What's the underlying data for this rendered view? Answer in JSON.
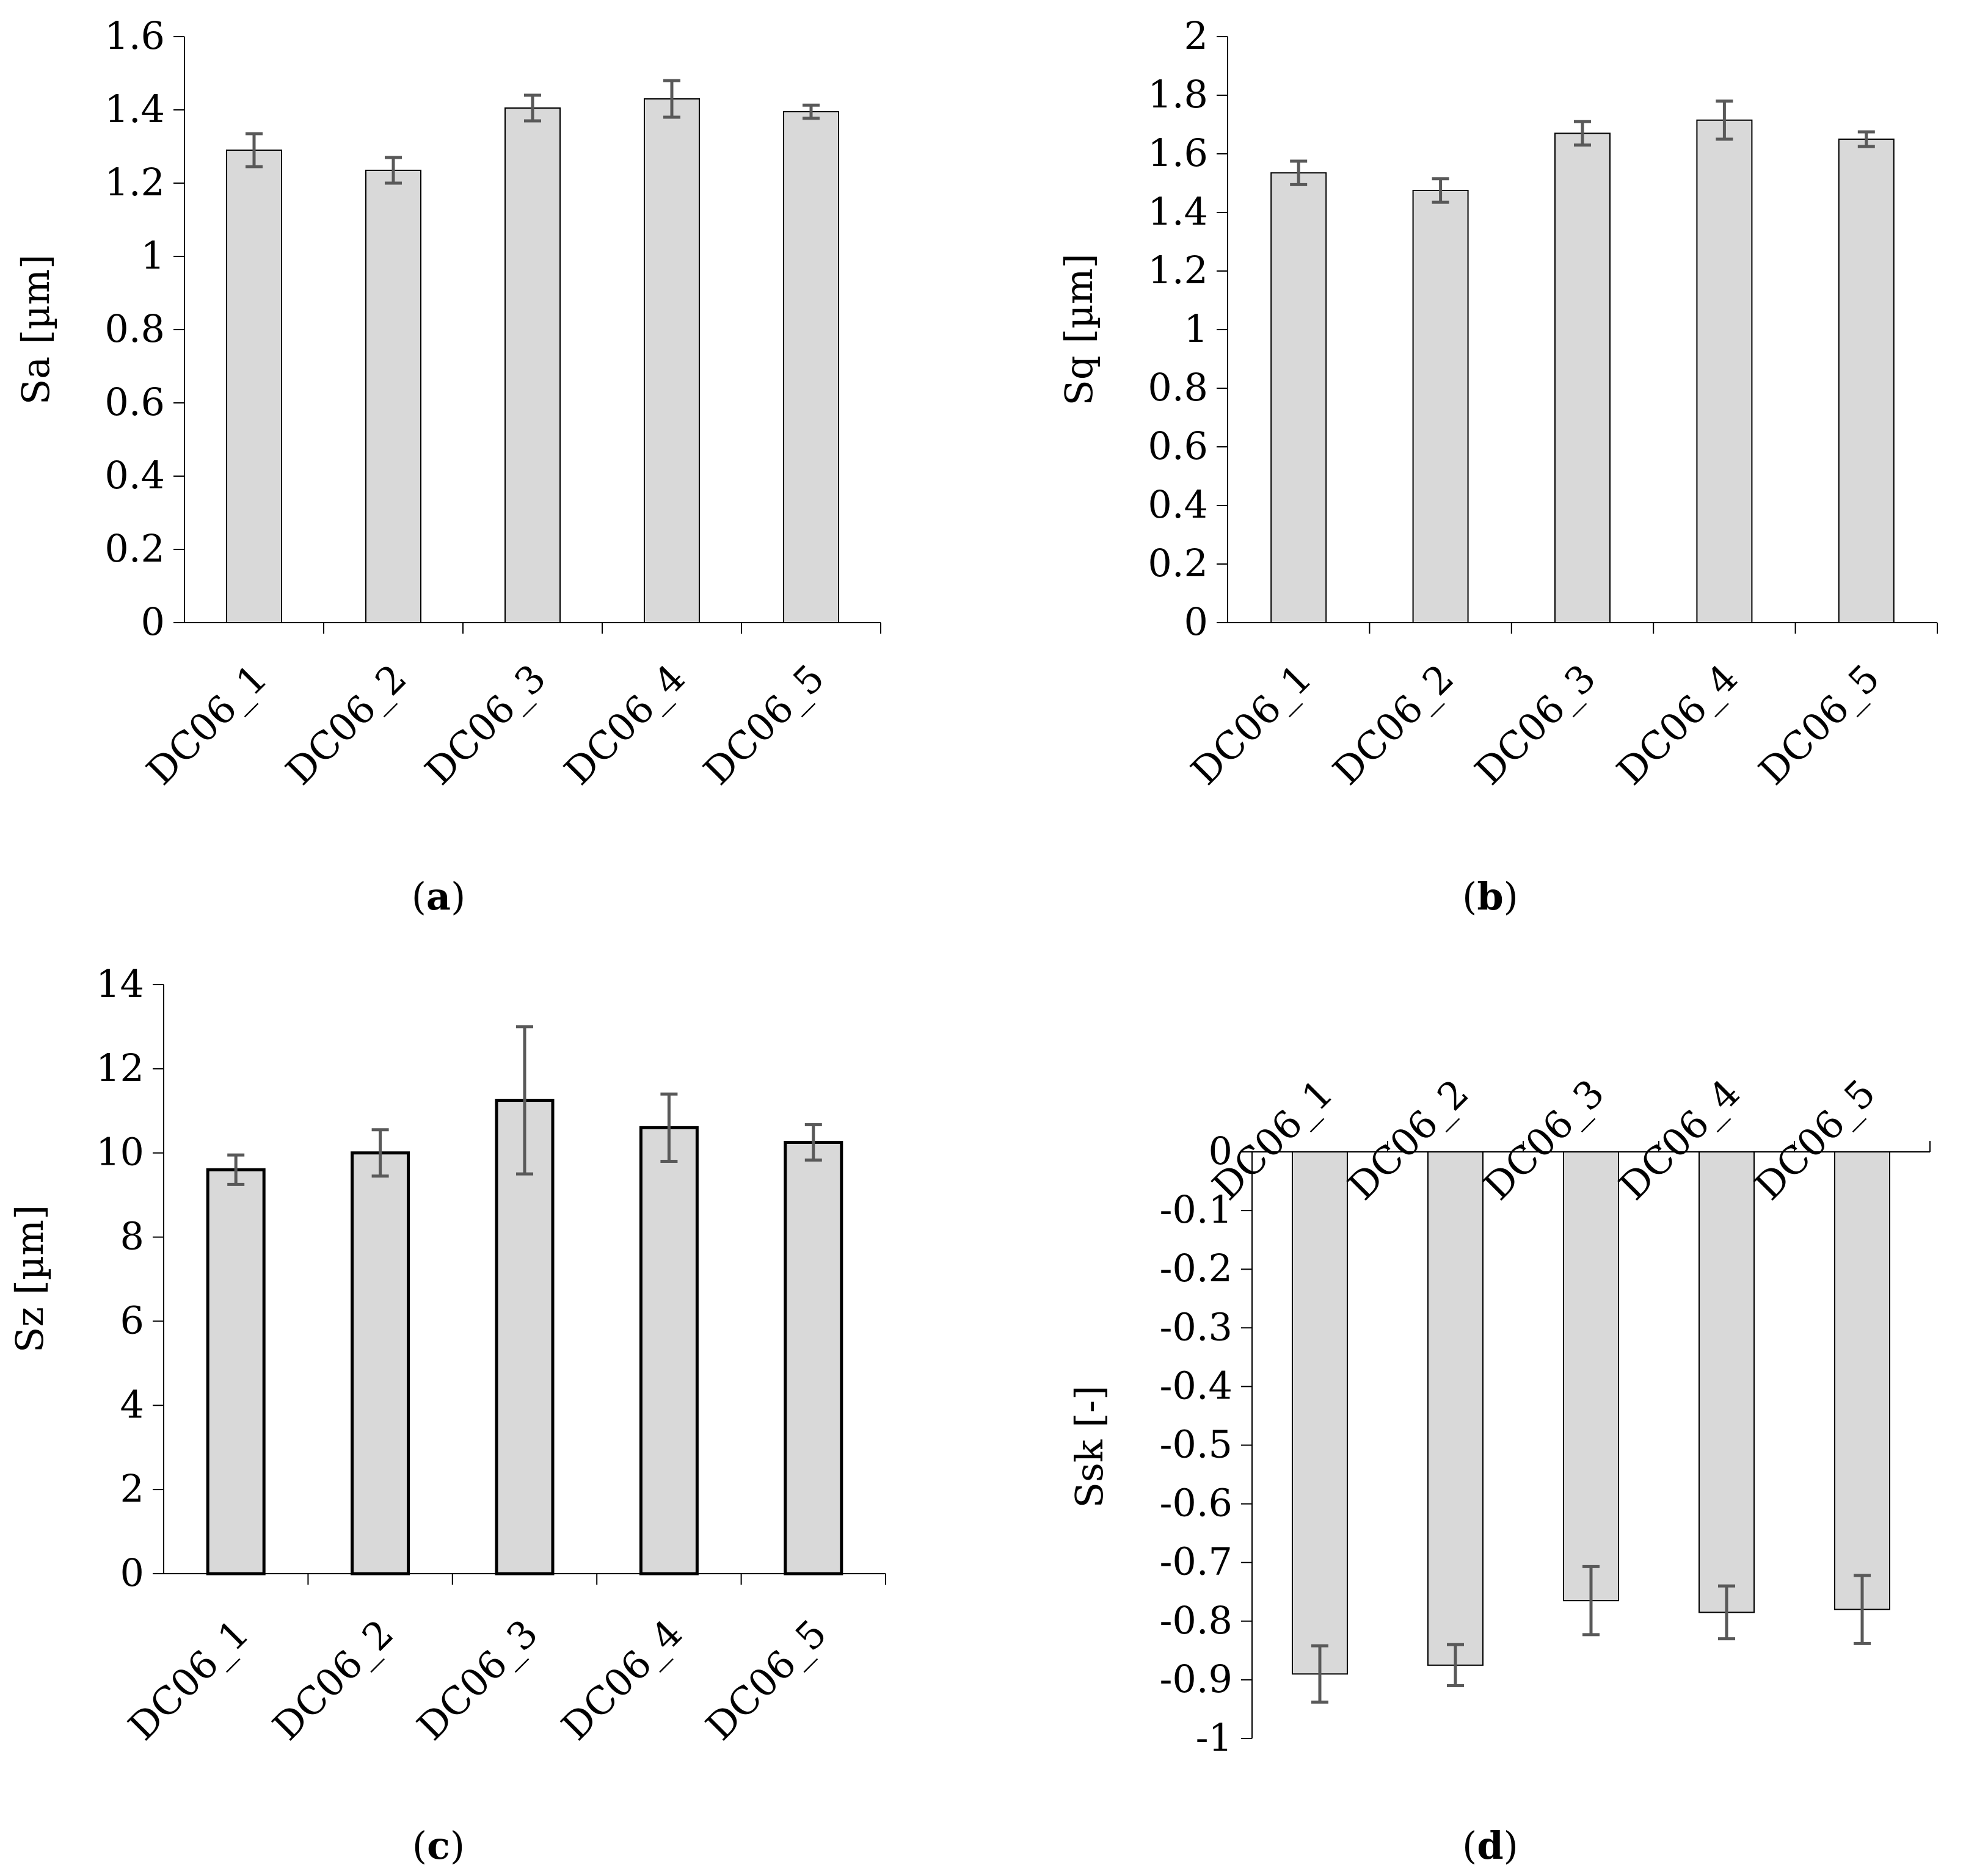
{
  "colors": {
    "bar_fill": "#d9d9d9",
    "bar_stroke": "#000000",
    "error_bar": "#595959",
    "axis": "#000000"
  },
  "chart_data": [
    {
      "id": "a",
      "type": "bar",
      "caption_letter": "a",
      "categories": [
        "DC06_1",
        "DC06_2",
        "DC06_3",
        "DC06_4",
        "DC06_5"
      ],
      "values": [
        1.29,
        1.235,
        1.405,
        1.43,
        1.395
      ],
      "errors": [
        0.045,
        0.035,
        0.035,
        0.05,
        0.018
      ],
      "ylabel": "Sa [µm]",
      "ylim": [
        0,
        1.6
      ],
      "ytick_values": [
        0,
        0.2,
        0.4,
        0.6,
        0.8,
        1,
        1.2,
        1.4,
        1.6
      ],
      "ytick_labels": [
        "0",
        "0.2",
        "0.4",
        "0.6",
        "0.8",
        "1",
        "1.2",
        "1.4",
        "1.6"
      ],
      "category_axis_position": "bottom"
    },
    {
      "id": "b",
      "type": "bar",
      "caption_letter": "b",
      "categories": [
        "DC06_1",
        "DC06_2",
        "DC06_3",
        "DC06_4",
        "DC06_5"
      ],
      "values": [
        1.535,
        1.475,
        1.67,
        1.715,
        1.65
      ],
      "errors": [
        0.04,
        0.04,
        0.04,
        0.065,
        0.025
      ],
      "ylabel": "Sq [µm]",
      "ylim": [
        0,
        2
      ],
      "ytick_values": [
        0,
        0.2,
        0.4,
        0.6,
        0.8,
        1,
        1.2,
        1.4,
        1.6,
        1.8,
        2
      ],
      "ytick_labels": [
        "0",
        "0.2",
        "0.4",
        "0.6",
        "0.8",
        "1",
        "1.2",
        "1.4",
        "1.6",
        "1.8",
        "2"
      ],
      "category_axis_position": "bottom"
    },
    {
      "id": "c",
      "type": "bar",
      "caption_letter": "c",
      "categories": [
        "DC06_1",
        "DC06_2",
        "DC06_3",
        "DC06_4",
        "DC06_5"
      ],
      "values": [
        9.6,
        10.0,
        11.25,
        10.6,
        10.25
      ],
      "errors": [
        0.35,
        0.55,
        1.75,
        0.8,
        0.42
      ],
      "ylabel": "Sz [µm]",
      "ylim": [
        0,
        14
      ],
      "ytick_values": [
        0,
        2,
        4,
        6,
        8,
        10,
        12,
        14
      ],
      "ytick_labels": [
        "0",
        "2",
        "4",
        "6",
        "8",
        "10",
        "12",
        "14"
      ],
      "category_axis_position": "bottom"
    },
    {
      "id": "d",
      "type": "bar",
      "caption_letter": "d",
      "categories": [
        "DC06_1",
        "DC06_2",
        "DC06_3",
        "DC06_4",
        "DC06_5"
      ],
      "values": [
        -0.89,
        -0.875,
        -0.765,
        -0.785,
        -0.78
      ],
      "errors": [
        0.048,
        0.035,
        0.058,
        0.045,
        0.058
      ],
      "ylabel": "Ssk [-]",
      "ylim": [
        -1,
        0
      ],
      "ytick_values": [
        0,
        -0.1,
        -0.2,
        -0.3,
        -0.4,
        -0.5,
        -0.6,
        -0.7,
        -0.8,
        -0.9,
        -1
      ],
      "ytick_labels": [
        "0",
        "-0.1",
        "-0.2",
        "-0.3",
        "-0.4",
        "-0.5",
        "-0.6",
        "-0.7",
        "-0.8",
        "-0.9",
        "-1"
      ],
      "category_axis_position": "top"
    }
  ]
}
